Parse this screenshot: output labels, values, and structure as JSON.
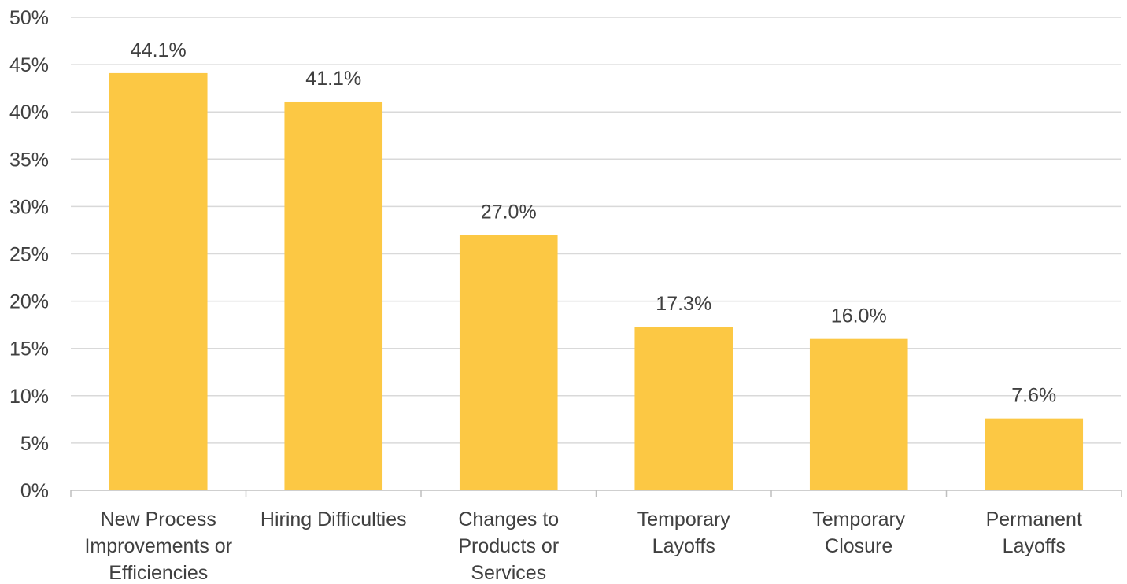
{
  "chart_data": {
    "type": "bar",
    "title": "",
    "xlabel": "",
    "ylabel": "",
    "categories": [
      [
        "New Process",
        "Improvements or",
        "Efficiencies"
      ],
      [
        "Hiring Difficulties"
      ],
      [
        "Changes to",
        "Products or",
        "Services"
      ],
      [
        "Temporary",
        "Layoffs"
      ],
      [
        "Temporary",
        "Closure"
      ],
      [
        "Permanent",
        "Layoffs"
      ]
    ],
    "values": [
      44.1,
      41.1,
      27.0,
      17.3,
      16.0,
      7.6
    ],
    "data_labels": [
      "44.1%",
      "41.1%",
      "27.0%",
      "17.3%",
      "16.0%",
      "7.6%"
    ],
    "ylim": [
      0,
      50
    ],
    "y_ticks": [
      0,
      5,
      10,
      15,
      20,
      25,
      30,
      35,
      40,
      45,
      50
    ],
    "y_tick_labels": [
      "0%",
      "5%",
      "10%",
      "15%",
      "20%",
      "25%",
      "30%",
      "35%",
      "40%",
      "45%",
      "50%"
    ],
    "grid": true,
    "legend": "none",
    "bar_color": "#FCC844"
  }
}
